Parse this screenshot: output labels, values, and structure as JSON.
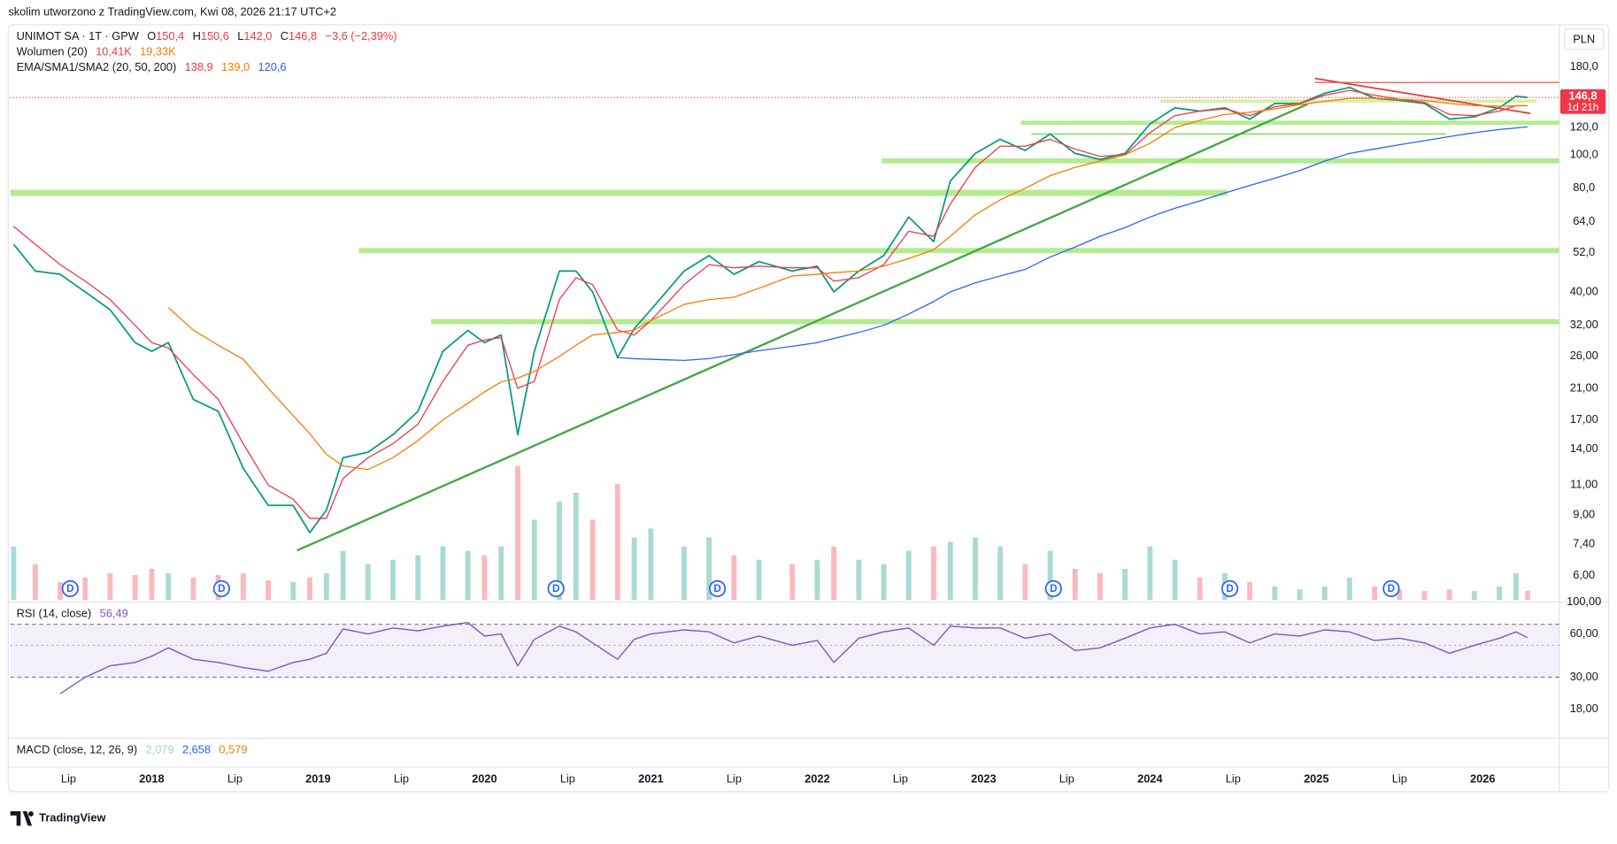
{
  "header": {
    "caption": "skolim utworzono z TradingView.com, Kwi 08, 2026 21:17 UTC+2",
    "currency": "PLN",
    "brand": "TradingView"
  },
  "legend": {
    "symbol": "UNIMOT SA · 1T · GPW",
    "ohlc": [
      {
        "label": "O",
        "value": "150,4"
      },
      {
        "label": "H",
        "value": "150,6"
      },
      {
        "label": "L",
        "value": "142,0"
      },
      {
        "label": "C",
        "value": "146,8"
      }
    ],
    "change": "−3,6 (−2,39%)",
    "volume_title": "Wolumen (20)",
    "volume_values": [
      "10,41K",
      "19,33K"
    ],
    "ma_title": "EMA/SMA1/SMA2 (20, 50, 200)",
    "ma_values": [
      "138,9",
      "139,0",
      "120,6"
    ],
    "rsi_title": "RSI (14, close)",
    "rsi_value": "56,49",
    "macd_title": "MACD (close, 12, 26, 9)",
    "macd_values": [
      "2,079",
      "2,658",
      "0,579"
    ]
  },
  "price_label": {
    "value": "146,8",
    "countdown": "1d 21h"
  },
  "dividends": {
    "label": "D",
    "x": [
      2017.51,
      2018.42,
      2020.43,
      2021.4,
      2023.42,
      2024.48,
      2025.45
    ]
  },
  "chart_data": [
    {
      "type": "line",
      "log_scale": true,
      "grid": false,
      "up_color": "#089981",
      "down_color": "#f23645",
      "x": [
        2017.17,
        2017.3,
        2017.45,
        2017.6,
        2017.75,
        2017.9,
        2018.0,
        2018.1,
        2018.25,
        2018.4,
        2018.55,
        2018.7,
        2018.85,
        2018.95,
        2019.05,
        2019.15,
        2019.3,
        2019.45,
        2019.6,
        2019.75,
        2019.9,
        2020.0,
        2020.1,
        2020.2,
        2020.3,
        2020.45,
        2020.55,
        2020.65,
        2020.8,
        2020.9,
        2021.0,
        2021.2,
        2021.35,
        2021.5,
        2021.65,
        2021.85,
        2022.0,
        2022.1,
        2022.25,
        2022.4,
        2022.55,
        2022.7,
        2022.8,
        2022.95,
        2023.1,
        2023.25,
        2023.4,
        2023.55,
        2023.7,
        2023.85,
        2024.0,
        2024.15,
        2024.3,
        2024.45,
        2024.6,
        2024.75,
        2024.9,
        2025.05,
        2025.2,
        2025.35,
        2025.5,
        2025.65,
        2025.8,
        2025.95,
        2026.1,
        2026.2,
        2026.27
      ],
      "xlim": [
        2017.15,
        2026.46
      ],
      "xticks": [
        {
          "value": 2017.5,
          "label": "Lip"
        },
        {
          "value": 2018,
          "label": "2018"
        },
        {
          "value": 2018.5,
          "label": "Lip"
        },
        {
          "value": 2019,
          "label": "2019"
        },
        {
          "value": 2019.5,
          "label": "Lip"
        },
        {
          "value": 2020,
          "label": "2020"
        },
        {
          "value": 2020.5,
          "label": "Lip"
        },
        {
          "value": 2021,
          "label": "2021"
        },
        {
          "value": 2021.5,
          "label": "Lip"
        },
        {
          "value": 2022,
          "label": "2022"
        },
        {
          "value": 2022.5,
          "label": "Lip"
        },
        {
          "value": 2023,
          "label": "2023"
        },
        {
          "value": 2023.5,
          "label": "Lip"
        },
        {
          "value": 2024,
          "label": "2024"
        },
        {
          "value": 2024.5,
          "label": "Lip"
        },
        {
          "value": 2025,
          "label": "2025"
        },
        {
          "value": 2025.5,
          "label": "Lip"
        },
        {
          "value": 2026,
          "label": "2026"
        }
      ],
      "ylim": [
        5.1,
        229
      ],
      "yticks": [
        {
          "value": 180,
          "label": "180,0"
        },
        {
          "value": 120,
          "label": "120,0"
        },
        {
          "value": 100,
          "label": "100,0"
        },
        {
          "value": 80,
          "label": "80,0"
        },
        {
          "value": 64,
          "label": "64,0"
        },
        {
          "value": 52,
          "label": "52,0"
        },
        {
          "value": 40,
          "label": "40,00"
        },
        {
          "value": 32,
          "label": "32,00"
        },
        {
          "value": 26,
          "label": "26,00"
        },
        {
          "value": 21,
          "label": "21,00"
        },
        {
          "value": 17,
          "label": "17,00"
        },
        {
          "value": 14,
          "label": "14,00"
        },
        {
          "value": 11,
          "label": "11,00"
        },
        {
          "value": 9,
          "label": "9,00"
        },
        {
          "value": 7.4,
          "label": "7,40"
        },
        {
          "value": 6,
          "label": "6,00"
        }
      ],
      "series": [
        {
          "name": "UNIMOT SA · 1T · GPW",
          "role": "price",
          "color": "#089981",
          "values": [
            55,
            46,
            45,
            40,
            35.5,
            28.5,
            26.9,
            28.5,
            19.5,
            18,
            12.3,
            9.6,
            9.6,
            8.0,
            9.3,
            13.2,
            13.7,
            15.4,
            18,
            26.9,
            30.9,
            28.5,
            30,
            15.4,
            26.9,
            46,
            46,
            40,
            25.8,
            31.3,
            35.5,
            46,
            51,
            45,
            49,
            46,
            47.5,
            40,
            46,
            51,
            66,
            56,
            84,
            101,
            111,
            103,
            115,
            101,
            97,
            101,
            123,
            137,
            134,
            137,
            127,
            141,
            141,
            151,
            157,
            146,
            144,
            141,
            127,
            129,
            137,
            148,
            146.8
          ]
        },
        {
          "role": "ema",
          "color": "#f23645",
          "values": [
            62,
            55,
            48,
            43,
            38,
            32,
            28.5,
            27.5,
            23,
            19.5,
            14.5,
            11,
            10,
            8.8,
            8.8,
            11.5,
            13.2,
            14.5,
            16.5,
            22,
            28,
            29,
            29.5,
            21,
            22,
            38,
            44,
            42,
            31,
            30,
            33,
            42,
            48,
            47,
            47.5,
            47,
            47,
            43,
            44,
            48,
            60,
            58,
            72,
            92,
            106,
            106,
            111,
            104,
            99,
            100,
            116,
            130,
            134,
            136,
            130,
            138,
            141,
            149,
            154,
            149,
            145,
            142,
            131,
            130,
            134,
            139,
            138.9
          ]
        },
        {
          "role": "sma",
          "color": "#f57c00",
          "values": [
            null,
            null,
            null,
            null,
            null,
            null,
            null,
            36,
            31,
            28,
            25.5,
            21,
            17.5,
            15.5,
            13.5,
            12.5,
            12.2,
            13.2,
            14.8,
            17,
            19,
            20.5,
            21.9,
            22.5,
            23.5,
            26,
            28,
            30,
            30.5,
            31,
            33,
            36.8,
            38,
            38.6,
            41,
            44.5,
            45,
            45.5,
            46,
            47.5,
            50,
            53,
            58,
            67,
            74,
            80,
            87,
            92,
            96,
            100,
            108,
            120,
            126,
            131,
            133,
            136,
            140,
            143,
            146,
            146,
            145,
            144,
            141,
            139,
            138.5,
            138.8,
            139.0
          ]
        },
        {
          "role": "sma",
          "color": "#2962ff",
          "values": [
            null,
            null,
            null,
            null,
            null,
            null,
            null,
            null,
            null,
            null,
            null,
            null,
            null,
            null,
            null,
            null,
            null,
            null,
            null,
            null,
            null,
            null,
            null,
            null,
            null,
            null,
            null,
            null,
            25.8,
            25.6,
            25.5,
            25.3,
            25.6,
            26.3,
            27,
            27.8,
            28.5,
            29.3,
            30.5,
            32,
            34.5,
            37.5,
            40,
            42.5,
            44.5,
            46.5,
            50.5,
            54,
            58,
            61.5,
            66,
            70,
            73.5,
            77.5,
            81.5,
            85.5,
            90,
            96,
            101,
            104,
            107,
            110,
            113,
            116,
            118.5,
            119.7,
            120.6
          ]
        },
        {
          "name": "Wolumen (20)",
          "role": "volume",
          "values": [
            60,
            40,
            20,
            25,
            30,
            28,
            35,
            30,
            25,
            28,
            30,
            22,
            20,
            25,
            30,
            55,
            40,
            45,
            50,
            60,
            55,
            50,
            60,
            150,
            90,
            110,
            120,
            90,
            130,
            70,
            80,
            60,
            70,
            50,
            45,
            40,
            45,
            60,
            45,
            40,
            55,
            60,
            65,
            70,
            60,
            40,
            55,
            35,
            30,
            35,
            60,
            45,
            25,
            30,
            20,
            15,
            12,
            15,
            25,
            15,
            12,
            10,
            12,
            10,
            15,
            30,
            10.41
          ]
        }
      ]
    },
    {
      "type": "line",
      "log_scale": true,
      "ylim": [
        11.5,
        100
      ],
      "yticks": [
        {
          "value": 100,
          "label": "100,00"
        },
        {
          "value": 60,
          "label": "60,00"
        },
        {
          "value": 30,
          "label": "30,00"
        },
        {
          "value": 18,
          "label": "18,00"
        }
      ],
      "band": [
        30,
        70
      ],
      "midline": 50,
      "band_color": "#7e57c2",
      "series": [
        {
          "name": "RSI (14, close)",
          "color": "#7e57c2",
          "values": [
            null,
            null,
            23,
            30,
            36,
            38,
            42,
            48,
            40,
            38,
            35,
            33,
            38,
            40,
            44,
            65,
            60,
            66,
            63,
            68,
            72,
            58,
            60,
            36,
            55,
            68,
            62,
            52,
            40,
            55,
            60,
            64,
            62,
            52,
            58,
            50,
            54,
            38,
            56,
            62,
            66,
            50,
            68,
            66,
            66,
            56,
            60,
            46,
            48,
            56,
            66,
            70,
            60,
            62,
            52,
            60,
            58,
            64,
            62,
            54,
            56,
            52,
            44,
            50,
            56,
            62,
            56.49
          ]
        }
      ]
    }
  ]
}
